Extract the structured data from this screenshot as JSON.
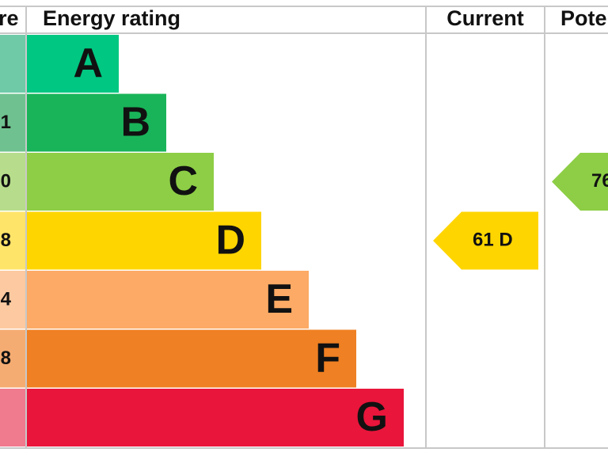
{
  "header": {
    "score": "re",
    "rating": "Energy rating",
    "current": "Current",
    "potential": "Pote"
  },
  "bands": [
    {
      "letter": "A"
    },
    {
      "score": "1",
      "letter": "B"
    },
    {
      "score": "0",
      "letter": "C"
    },
    {
      "score": "8",
      "letter": "D"
    },
    {
      "score": "4",
      "letter": "E"
    },
    {
      "score": "8",
      "letter": "F"
    },
    {
      "letter": "G"
    }
  ],
  "current": {
    "label": "61 D"
  },
  "potential": {
    "label": "76"
  }
}
